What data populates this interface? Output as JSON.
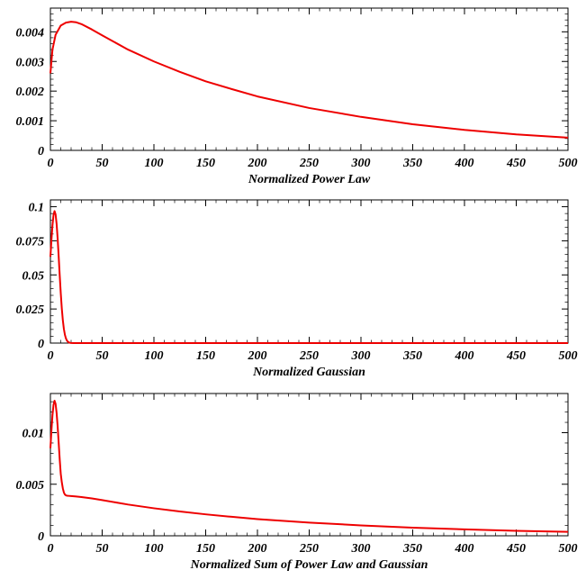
{
  "chart_data": [
    {
      "type": "line",
      "xlabel": "Normalized Power Law",
      "ylabel": "",
      "xlim": [
        0,
        500
      ],
      "ylim": [
        0,
        0.0048
      ],
      "xticks": [
        "0",
        "50",
        "100",
        "150",
        "200",
        "250",
        "300",
        "350",
        "400",
        "450",
        "500"
      ],
      "yticks": [
        "0",
        "0.001",
        "0.002",
        "0.003",
        "0.004"
      ],
      "series": [
        {
          "color": "#ee0000",
          "x": [
            0,
            2,
            5,
            10,
            15,
            20,
            25,
            30,
            40,
            50,
            75,
            100,
            125,
            150,
            175,
            200,
            250,
            300,
            350,
            400,
            450,
            500
          ],
          "y": [
            0.0026,
            0.0034,
            0.0039,
            0.00421,
            0.00431,
            0.00434,
            0.00432,
            0.00426,
            0.00408,
            0.00388,
            0.0034,
            0.003,
            0.00265,
            0.00233,
            0.00207,
            0.00182,
            0.00143,
            0.00113,
            0.00088,
            0.00069,
            0.00054,
            0.00043
          ]
        }
      ]
    },
    {
      "type": "line",
      "xlabel": "Normalized Gaussian",
      "ylabel": "",
      "xlim": [
        0,
        500
      ],
      "ylim": [
        0,
        0.105
      ],
      "xticks": [
        "0",
        "50",
        "100",
        "150",
        "200",
        "250",
        "300",
        "350",
        "400",
        "450",
        "500"
      ],
      "yticks": [
        "0",
        "0.025",
        "0.05",
        "0.075",
        "0.1"
      ],
      "series": [
        {
          "color": "#ee0000",
          "x": [
            0,
            1,
            2,
            3,
            4,
            5,
            6,
            7,
            8,
            9,
            10,
            11,
            12,
            13,
            14,
            15,
            16,
            17,
            18,
            19,
            20,
            22,
            24,
            26,
            30,
            40,
            100,
            200,
            300,
            400,
            500
          ],
          "y": [
            0.0633,
            0.0756,
            0.0864,
            0.0939,
            0.0968,
            0.0944,
            0.0873,
            0.0765,
            0.0634,
            0.0496,
            0.0366,
            0.0255,
            0.0168,
            0.0104,
            0.0061,
            0.0034,
            0.0018,
            0.0009,
            0.0004,
            0.0002,
            0.0001,
            0,
            0,
            0,
            0,
            0,
            0,
            0,
            0,
            0,
            0
          ]
        }
      ]
    },
    {
      "type": "line",
      "xlabel": "Normalized Sum of Power Law and Gaussian",
      "ylabel": "",
      "xlim": [
        0,
        500
      ],
      "ylim": [
        0,
        0.0138
      ],
      "xticks": [
        "0",
        "50",
        "100",
        "150",
        "200",
        "250",
        "300",
        "350",
        "400",
        "450",
        "500"
      ],
      "yticks": [
        "0",
        "0.005",
        "0.01"
      ],
      "series": [
        {
          "color": "#ee0000",
          "x": [
            0,
            1,
            2,
            3,
            4,
            5,
            6,
            7,
            8,
            9,
            10,
            11,
            12,
            13,
            14,
            15,
            16,
            18,
            20,
            25,
            30,
            40,
            50,
            75,
            100,
            125,
            150,
            175,
            200,
            250,
            300,
            350,
            400,
            450,
            500
          ],
          "y": [
            0.0085,
            0.0102,
            0.0117,
            0.0127,
            0.0131,
            0.0128,
            0.0119,
            0.0106,
            0.009,
            0.0074,
            0.006,
            0.0052,
            0.0046,
            0.0042,
            0.004,
            0.00392,
            0.00389,
            0.00387,
            0.00385,
            0.00381,
            0.00376,
            0.00362,
            0.00346,
            0.00303,
            0.00267,
            0.00236,
            0.00208,
            0.00184,
            0.00162,
            0.00128,
            0.00101,
            0.00079,
            0.00062,
            0.00048,
            0.00038
          ]
        }
      ]
    }
  ]
}
